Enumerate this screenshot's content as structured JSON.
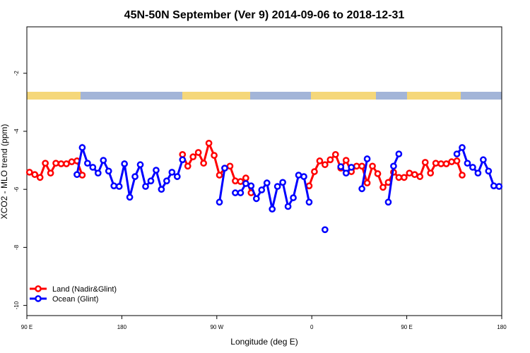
{
  "chart_data": {
    "type": "line",
    "title": "45N-50N September (Ver 9)   2014-09-06 to 2018-12-31",
    "x_label": "Longitude (deg E)",
    "y_label": "XCO2 - MLO trend (ppm)",
    "x": [
      92.5,
      97.5,
      102.5,
      107.5,
      112.5,
      117.5,
      122.5,
      127.5,
      132.5,
      137.5,
      142.5,
      147.5,
      152.5,
      157.5,
      162.5,
      167.5,
      172.5,
      177.5,
      182.5,
      187.5,
      192.5,
      197.5,
      202.5,
      207.5,
      212.5,
      217.5,
      222.5,
      227.5,
      232.5,
      237.5,
      242.5,
      247.5,
      252.5,
      257.5,
      262.5,
      267.5,
      272.5,
      277.5,
      282.5,
      287.5,
      292.5,
      297.5,
      302.5,
      307.5,
      312.5,
      317.5,
      322.5,
      327.5,
      332.5,
      337.5,
      342.5,
      347.5,
      352.5,
      357.5,
      362.5,
      367.5,
      372.5,
      377.5,
      382.5,
      387.5,
      392.5,
      397.5,
      402.5,
      407.5,
      412.5,
      417.5,
      422.5,
      427.5,
      432.5,
      437.5,
      442.5,
      447.5,
      452.5,
      457.5,
      462.5,
      467.5,
      472.5,
      477.5,
      482.5,
      487.5,
      492.5,
      497.5,
      502.5,
      507.5,
      512.5,
      517.5,
      522.5,
      527.5,
      532.5,
      537.5
    ],
    "series": [
      {
        "name": "Land (Nadir&Glint)",
        "color": "#ff0000",
        "values": [
          -5.41,
          -5.49,
          -5.59,
          -5.1,
          -5.44,
          -5.1,
          -5.12,
          -5.12,
          -5.05,
          -5.02,
          -5.51,
          null,
          null,
          null,
          null,
          null,
          null,
          null,
          null,
          null,
          null,
          null,
          null,
          null,
          null,
          null,
          null,
          null,
          null,
          -4.8,
          -5.2,
          -4.88,
          -4.73,
          -5.1,
          -4.41,
          -4.83,
          -5.51,
          -5.27,
          -5.2,
          -5.71,
          -5.73,
          -5.61,
          -6.12,
          null,
          null,
          null,
          null,
          null,
          null,
          null,
          null,
          null,
          null,
          -5.88,
          -5.39,
          -5.02,
          -5.15,
          -4.98,
          -4.8,
          -5.27,
          -5.0,
          -5.39,
          -5.2,
          -5.2,
          -5.78,
          -5.2,
          -5.46,
          -5.93,
          -5.76,
          -5.41,
          -5.59,
          -5.59,
          -5.44,
          -5.49,
          -5.56,
          -5.07,
          -5.44,
          -5.1,
          -5.12,
          -5.12,
          -5.05,
          -5.02,
          -5.51,
          null,
          null,
          null,
          null,
          null,
          null,
          null
        ]
      },
      {
        "name": "Ocean (Glint)",
        "color": "#0000ff",
        "values": [
          null,
          null,
          null,
          null,
          null,
          null,
          null,
          null,
          null,
          -5.49,
          -4.56,
          -5.1,
          -5.24,
          -5.44,
          -5.0,
          -5.37,
          -5.88,
          -5.9,
          -5.12,
          -6.27,
          -5.56,
          -5.15,
          -5.9,
          -5.71,
          -5.34,
          -6.0,
          -5.71,
          -5.41,
          -5.56,
          -4.98,
          null,
          null,
          null,
          null,
          null,
          null,
          -6.44,
          -5.27,
          null,
          -6.12,
          -6.12,
          -5.8,
          -5.88,
          -6.32,
          -6.02,
          -5.78,
          -6.68,
          -5.9,
          -5.76,
          -6.59,
          -6.29,
          -5.51,
          -5.56,
          -6.44,
          null,
          null,
          -7.39,
          null,
          null,
          -5.22,
          -5.44,
          -5.24,
          null,
          -5.98,
          -4.95,
          null,
          null,
          null,
          -6.44,
          -5.2,
          -4.78,
          null,
          null,
          null,
          null,
          null,
          null,
          null,
          null,
          null,
          null,
          -4.78,
          -4.56,
          -5.1,
          -5.24,
          -5.44,
          -4.98,
          -5.37,
          -5.88,
          -5.9
        ]
      }
    ],
    "xlim": [
      90,
      540
    ],
    "ylim": [
      -10.35,
      -0.4
    ],
    "xticks": [
      {
        "value": 90,
        "label": "90 E"
      },
      180,
      {
        "value": 270,
        "label": "90 W"
      },
      {
        "value": 360,
        "label": "0"
      },
      {
        "value": 450,
        "label": "90 E"
      },
      {
        "value": 540,
        "label": "180"
      }
    ],
    "yticks": [
      -10,
      -8,
      -6,
      -4,
      -2
    ],
    "legend": "bottom-left"
  }
}
